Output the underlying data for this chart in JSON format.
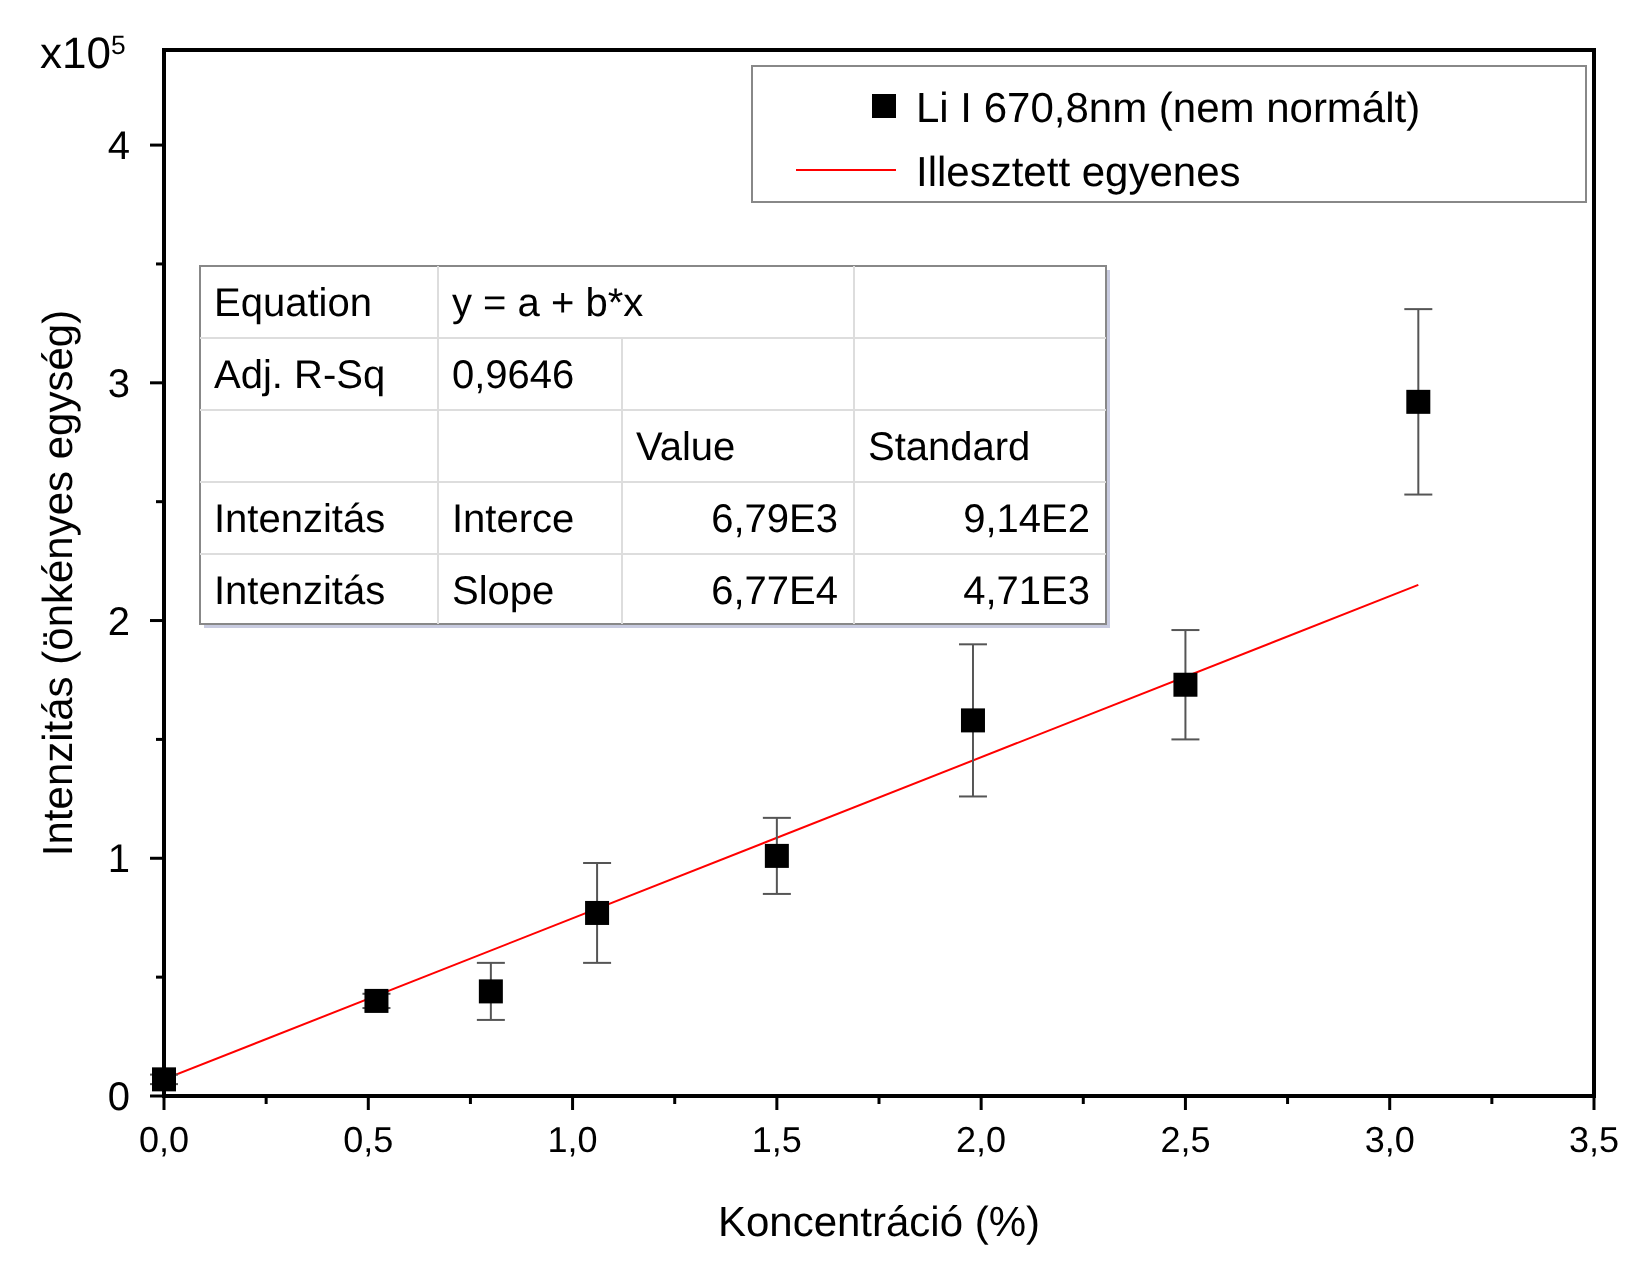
{
  "chart_data": {
    "type": "scatter",
    "xlabel": "Koncentráció (%)",
    "ylabel": "Intenzitás (önkényes egység)",
    "annotations": [
      "x10$^{5}$",
      "Equation",
      "y = a + b*x",
      "Adj. R-Sq",
      "0,9646",
      "Value",
      "Standard",
      "Intenzitás",
      "Interce",
      "6,79E3",
      "9,14E2",
      "Intenzitás",
      "Slope",
      "6,77E4",
      "4,71E3"
    ],
    "series": [
      {
        "name": "Li I 670,8nm (nem normált)",
        "color": "#000000",
        "marker": "square",
        "x": [
          0.0,
          0.52,
          0.8,
          1.06,
          1.5,
          1.98,
          2.5,
          3.07
        ],
        "values": [
          0.07,
          0.4,
          0.44,
          0.77,
          1.01,
          1.58,
          1.73,
          2.92
        ],
        "errors": [
          0.02,
          0.03,
          0.12,
          0.21,
          0.16,
          0.32,
          0.23,
          0.39
        ]
      },
      {
        "name": "Illesztett egyenes",
        "type": "line",
        "color": "#ff0000",
        "marker": "none",
        "line_style": "solid",
        "x": [
          0.0,
          3.07
        ],
        "values": [
          0.07,
          2.15
        ]
      }
    ],
    "xlim": [
      0,
      3.5
    ],
    "ylim": [
      0,
      4.4
    ],
    "xticks": [
      {
        "value": 0,
        "label": "0,0"
      },
      {
        "value": 0.25,
        "label": null
      },
      {
        "value": 0.5,
        "label": "0,5"
      },
      {
        "value": 0.75,
        "label": null
      },
      {
        "value": 1,
        "label": "1,0"
      },
      {
        "value": 1.25,
        "label": null
      },
      {
        "value": 1.5,
        "label": "1,5"
      },
      {
        "value": 1.75,
        "label": null
      },
      {
        "value": 2,
        "label": "2,0"
      },
      {
        "value": 2.25,
        "label": null
      },
      {
        "value": 2.5,
        "label": "2,5"
      },
      {
        "value": 2.75,
        "label": null
      },
      {
        "value": 3,
        "label": "3,0"
      },
      {
        "value": 3.25,
        "label": null
      },
      {
        "value": 3.5,
        "label": "3,5"
      }
    ],
    "yticks": [
      0,
      {
        "value": 0.5,
        "label": null
      },
      1,
      {
        "value": 1.5,
        "label": null
      },
      2,
      {
        "value": 2.5,
        "label": null
      },
      3,
      {
        "value": 3.5,
        "label": null
      },
      4
    ],
    "grid": false,
    "legend": "top right"
  }
}
